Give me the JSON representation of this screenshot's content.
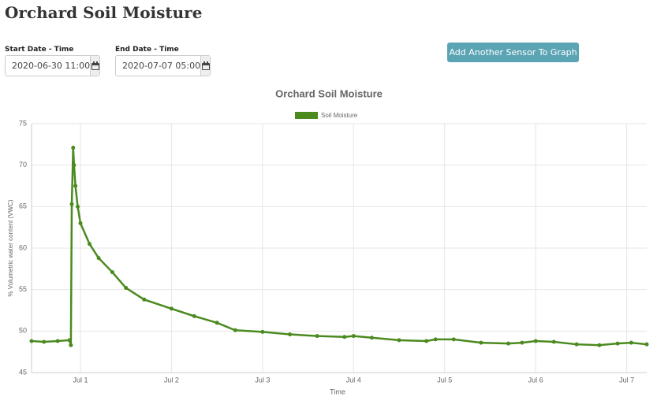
{
  "page": {
    "title": "Orchard Soil Moisture",
    "start_label": "Start Date - Time",
    "start_value": "2020-06-30 11:00",
    "end_label": "End Date - Time",
    "end_value": "2020-07-07 05:00",
    "button": "Add Another Sensor To Graph"
  },
  "chart_data": {
    "type": "line",
    "title": "Orchard Soil Moisture",
    "x_label": "Time",
    "y_label": "% Volumetric water content (VWC)",
    "x": [
      0.463,
      0.6,
      0.75,
      0.88,
      0.895,
      0.905,
      0.92,
      0.93,
      0.945,
      0.97,
      1.0,
      1.1,
      1.2,
      1.35,
      1.5,
      1.7,
      2.0,
      2.25,
      2.5,
      2.7,
      3.0,
      3.3,
      3.6,
      3.9,
      4.0,
      4.2,
      4.5,
      4.8,
      4.9,
      5.1,
      5.4,
      5.7,
      5.85,
      6.0,
      6.2,
      6.45,
      6.7,
      6.9,
      7.05,
      7.22
    ],
    "series": [
      {
        "name": "Soil Moisture",
        "color": "#4b8a1f",
        "values": [
          48.8,
          48.7,
          48.8,
          48.9,
          48.3,
          65.3,
          72.1,
          70.0,
          67.5,
          65.0,
          63.0,
          60.5,
          58.8,
          57.1,
          55.2,
          53.8,
          52.7,
          51.8,
          51.0,
          50.1,
          49.9,
          49.6,
          49.4,
          49.3,
          49.4,
          49.2,
          48.9,
          48.8,
          49.0,
          49.0,
          48.6,
          48.5,
          48.6,
          48.8,
          48.7,
          48.4,
          48.3,
          48.5,
          48.6,
          48.4
        ]
      }
    ],
    "xlim": [
      0.463,
      7.22
    ],
    "xticks": [
      {
        "value": 1,
        "label": "Jul 1"
      },
      {
        "value": 2,
        "label": "Jul 2"
      },
      {
        "value": 3,
        "label": "Jul 3"
      },
      {
        "value": 4,
        "label": "Jul 4"
      },
      {
        "value": 5,
        "label": "Jul 5"
      },
      {
        "value": 6,
        "label": "Jul 6"
      },
      {
        "value": 7,
        "label": "Jul 7"
      }
    ],
    "ylim": [
      45,
      75
    ],
    "yticks": [
      45,
      50,
      55,
      60,
      65,
      70,
      75
    ],
    "grid": true,
    "legend": "top"
  }
}
